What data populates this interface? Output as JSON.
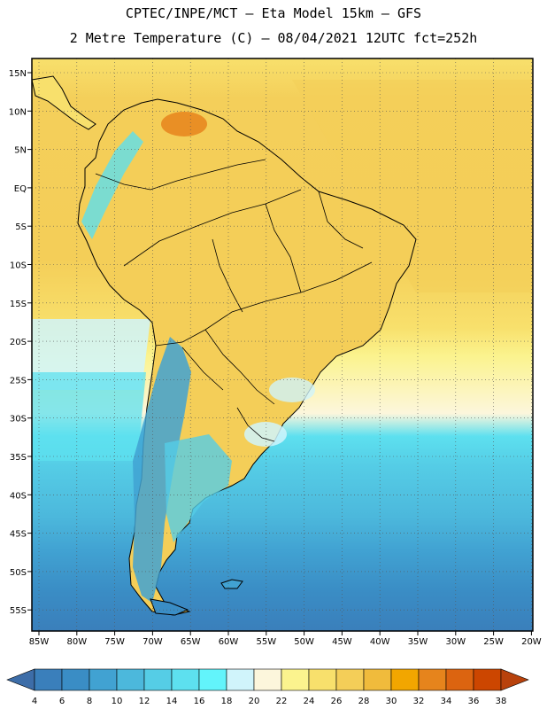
{
  "header": {
    "line1": "CPTEC/INPE/MCT –  Eta Model 15km – GFS",
    "line2": "2 Metre Temperature (C) – 08/04/2021 12UTC fct=252h"
  },
  "axes": {
    "lat_labels": [
      "15N",
      "10N",
      "5N",
      "EQ",
      "5S",
      "10S",
      "15S",
      "20S",
      "25S",
      "30S",
      "35S",
      "40S",
      "45S",
      "50S",
      "55S"
    ],
    "lon_labels": [
      "85W",
      "80W",
      "75W",
      "70W",
      "65W",
      "60W",
      "55W",
      "50W",
      "45W",
      "40W",
      "35W",
      "30W",
      "25W",
      "20W"
    ]
  },
  "colorbar": {
    "labels": [
      "4",
      "6",
      "8",
      "10",
      "12",
      "14",
      "16",
      "18",
      "20",
      "22",
      "24",
      "26",
      "28",
      "30",
      "32",
      "34",
      "36",
      "38"
    ],
    "colors": [
      "#3a7fbb",
      "#3a8dc5",
      "#41a2d2",
      "#4cb8dc",
      "#55cde6",
      "#5de0ef",
      "#62f4fb",
      "#d0f4fb",
      "#fcf6dc",
      "#fbf38e",
      "#f8e06c",
      "#f4ce58",
      "#f0bb3c",
      "#f2a600",
      "#e6841c",
      "#dc6410",
      "#cc4600"
    ],
    "low_color": "#3d6da8",
    "high_color": "#b8420c"
  }
}
